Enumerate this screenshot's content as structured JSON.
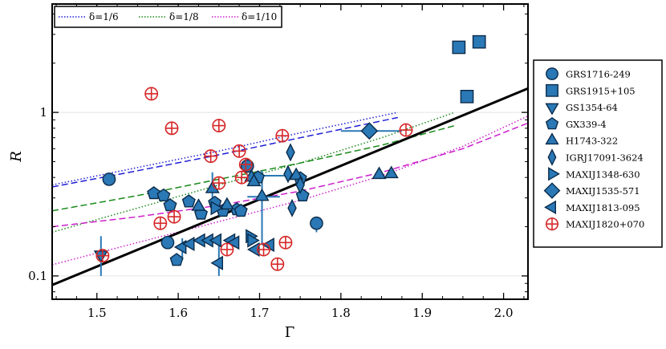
{
  "chart_data": {
    "type": "scatter",
    "title": "",
    "xlabel": "Γ",
    "ylabel": "R",
    "xlim": [
      1.445,
      2.03
    ],
    "ylim": [
      0.072,
      4.6
    ],
    "yscale": "log",
    "xticks": [
      1.5,
      1.6,
      1.7,
      1.8,
      1.9,
      2.0
    ],
    "xtick_labels": [
      "1.5",
      "1.6",
      "1.7",
      "1.8",
      "1.9",
      "2.0"
    ],
    "yticks": [
      0.1,
      1
    ],
    "ytick_labels": [
      "0.1",
      "1"
    ],
    "grid": "horizontal at 0.1 and 1",
    "colors": {
      "marker_fill": "#2a78b5",
      "marker_edge": "#0b2b4a",
      "maxi1820": "#d62728",
      "delta6": "#1f1fd4",
      "delta8": "#1a8a1a",
      "delta10": "#cc1fcc",
      "fit": "#000000"
    },
    "curve_legend": [
      {
        "label": "δ=1/6",
        "color": "#1f1fd4"
      },
      {
        "label": "δ=1/8",
        "color": "#1a8a1a"
      },
      {
        "label": "δ=1/10",
        "color": "#cc1fcc"
      }
    ],
    "fit_line": {
      "x": [
        1.445,
        2.03
      ],
      "y": [
        0.088,
        1.4
      ]
    },
    "curves": [
      {
        "name": "δ=1/6 dotted",
        "style": "dotted",
        "color": "#1f1fd4",
        "x": [
          1.445,
          1.55,
          1.65,
          1.75,
          1.87
        ],
        "y": [
          0.36,
          0.46,
          0.58,
          0.75,
          1.0
        ]
      },
      {
        "name": "δ=1/6 dashed",
        "style": "dashed",
        "color": "#1f1fd4",
        "x": [
          1.445,
          1.55,
          1.65,
          1.75,
          1.87
        ],
        "y": [
          0.35,
          0.44,
          0.55,
          0.7,
          0.93
        ]
      },
      {
        "name": "δ=1/8 dotted",
        "style": "dotted",
        "color": "#1a8a1a",
        "x": [
          1.445,
          1.55,
          1.65,
          1.75,
          1.85,
          1.94
        ],
        "y": [
          0.185,
          0.26,
          0.36,
          0.49,
          0.7,
          1.0
        ]
      },
      {
        "name": "δ=1/8 dashed",
        "style": "dashed",
        "color": "#1a8a1a",
        "x": [
          1.445,
          1.55,
          1.65,
          1.75,
          1.85,
          1.94
        ],
        "y": [
          0.25,
          0.31,
          0.39,
          0.49,
          0.63,
          0.83
        ]
      },
      {
        "name": "δ=1/10 dotted",
        "style": "dotted",
        "color": "#cc1fcc",
        "x": [
          1.445,
          1.55,
          1.65,
          1.75,
          1.85,
          1.95,
          2.03
        ],
        "y": [
          0.117,
          0.16,
          0.215,
          0.29,
          0.41,
          0.62,
          0.95
        ]
      },
      {
        "name": "δ=1/10 dashed",
        "style": "dashed",
        "color": "#cc1fcc",
        "x": [
          1.445,
          1.55,
          1.65,
          1.75,
          1.85,
          1.95,
          2.03
        ],
        "y": [
          0.2,
          0.23,
          0.27,
          0.33,
          0.43,
          0.6,
          0.86
        ]
      }
    ],
    "series": [
      {
        "name": "GRS1716-249",
        "marker": "circle",
        "points": [
          [
            1.515,
            0.39
          ],
          [
            1.587,
            0.16
          ],
          [
            1.685,
            0.47
          ],
          [
            1.77,
            0.21
          ]
        ]
      },
      {
        "name": "GRS1915+105",
        "marker": "square",
        "points": [
          [
            1.945,
            2.5
          ],
          [
            1.97,
            2.7
          ],
          [
            1.955,
            1.25
          ]
        ]
      },
      {
        "name": "GS1354-64",
        "marker": "triangle-down",
        "points": [
          [
            1.505,
            0.135
          ]
        ]
      },
      {
        "name": "GX339-4",
        "marker": "pentagon",
        "points": [
          [
            1.57,
            0.32
          ],
          [
            1.582,
            0.31
          ],
          [
            1.59,
            0.27
          ],
          [
            1.598,
            0.125
          ],
          [
            1.613,
            0.285
          ],
          [
            1.628,
            0.24
          ],
          [
            1.645,
            0.28
          ],
          [
            1.655,
            0.25
          ],
          [
            1.672,
            0.255
          ],
          [
            1.677,
            0.25
          ],
          [
            1.698,
            0.4
          ],
          [
            1.75,
            0.395
          ],
          [
            1.753,
            0.31
          ]
        ]
      },
      {
        "name": "H1743-322",
        "marker": "triangle-up",
        "points": [
          [
            1.625,
            0.265
          ],
          [
            1.642,
            0.34
          ],
          [
            1.66,
            0.27
          ],
          [
            1.69,
            0.4
          ],
          [
            1.693,
            0.375
          ],
          [
            1.703,
            0.305
          ],
          [
            1.745,
            0.41
          ],
          [
            1.847,
            0.415
          ],
          [
            1.862,
            0.42
          ]
        ]
      },
      {
        "name": "IGRJ17091-3624",
        "marker": "thin-diamond",
        "points": [
          [
            1.735,
            0.42
          ],
          [
            1.738,
            0.57
          ],
          [
            1.74,
            0.26
          ],
          [
            1.75,
            0.36
          ]
        ]
      },
      {
        "name": "MAXIJ1348-630",
        "marker": "triangle-right",
        "points": [
          [
            1.645,
            0.26
          ],
          [
            1.688,
            0.175
          ],
          [
            1.69,
            0.165
          ]
        ]
      },
      {
        "name": "MAXIJ1535-571",
        "marker": "diamond",
        "points": [
          [
            1.835,
            0.77
          ]
        ]
      },
      {
        "name": "MAXIJ1813-095",
        "marker": "triangle-left",
        "points": [
          [
            1.605,
            0.15
          ],
          [
            1.615,
            0.157
          ],
          [
            1.628,
            0.165
          ],
          [
            1.638,
            0.165
          ],
          [
            1.648,
            0.165
          ],
          [
            1.65,
            0.12
          ],
          [
            1.665,
            0.165
          ],
          [
            1.67,
            0.16
          ],
          [
            1.695,
            0.145
          ],
          [
            1.713,
            0.155
          ]
        ]
      },
      {
        "name": "MAXIJ1820+070",
        "marker": "circle-cross",
        "points": [
          [
            1.507,
            0.133
          ],
          [
            1.567,
            1.3
          ],
          [
            1.578,
            0.21
          ],
          [
            1.592,
            0.8
          ],
          [
            1.595,
            0.23
          ],
          [
            1.64,
            0.54
          ],
          [
            1.65,
            0.83
          ],
          [
            1.65,
            0.37
          ],
          [
            1.66,
            0.145
          ],
          [
            1.675,
            0.58
          ],
          [
            1.678,
            0.4
          ],
          [
            1.683,
            0.48
          ],
          [
            1.705,
            0.145
          ],
          [
            1.722,
            0.118
          ],
          [
            1.728,
            0.72
          ],
          [
            1.732,
            0.16
          ],
          [
            1.88,
            0.78
          ]
        ]
      }
    ]
  }
}
